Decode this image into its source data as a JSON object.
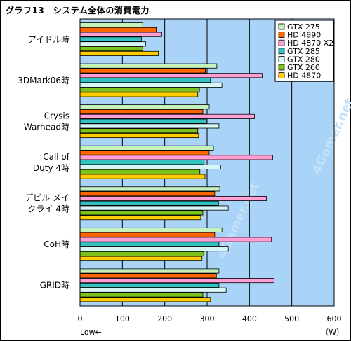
{
  "chart_data": {
    "type": "bar",
    "orientation": "horizontal",
    "title": "グラフ13　システム全体の消費電力",
    "categories": [
      [
        "アイドル時"
      ],
      [
        "3DMark06時"
      ],
      [
        "Crysis",
        "Warhead時"
      ],
      [
        "Call of",
        "Duty 4時"
      ],
      [
        "デビル メイ",
        "クライ 4時"
      ],
      [
        "CoH時"
      ],
      [
        "GRID時"
      ]
    ],
    "series": [
      {
        "name": "GTX 275",
        "color": "#c6f2bc",
        "values": [
          148,
          323,
          305,
          315,
          330,
          335,
          328
        ]
      },
      {
        "name": "HD 4890",
        "color": "#ff6600",
        "values": [
          180,
          296,
          290,
          305,
          318,
          318,
          322
        ]
      },
      {
        "name": "HD 4870 X2",
        "color": "#ff9fd6",
        "values": [
          193,
          430,
          412,
          455,
          440,
          452,
          458
        ]
      },
      {
        "name": "GTX 285",
        "color": "#33c2c2",
        "values": [
          145,
          308,
          298,
          293,
          327,
          328,
          328
        ]
      },
      {
        "name": "GTX 280",
        "color": "#d8f6f6",
        "values": [
          155,
          335,
          328,
          332,
          350,
          350,
          345
        ]
      },
      {
        "name": "GTX 260",
        "color": "#7cc21c",
        "values": [
          148,
          282,
          278,
          283,
          290,
          292,
          290
        ]
      },
      {
        "name": "HD 4870",
        "color": "#ffcc00",
        "values": [
          185,
          278,
          280,
          295,
          285,
          288,
          308
        ]
      }
    ],
    "xlim": [
      0,
      600
    ],
    "xticks": [
      "0",
      "100",
      "200",
      "300",
      "400",
      "500",
      "600"
    ],
    "x_note_left": "Low←",
    "x_unit": "（W）",
    "grid": true,
    "legend_position": "top-right",
    "watermark": "4Gamer.net"
  }
}
